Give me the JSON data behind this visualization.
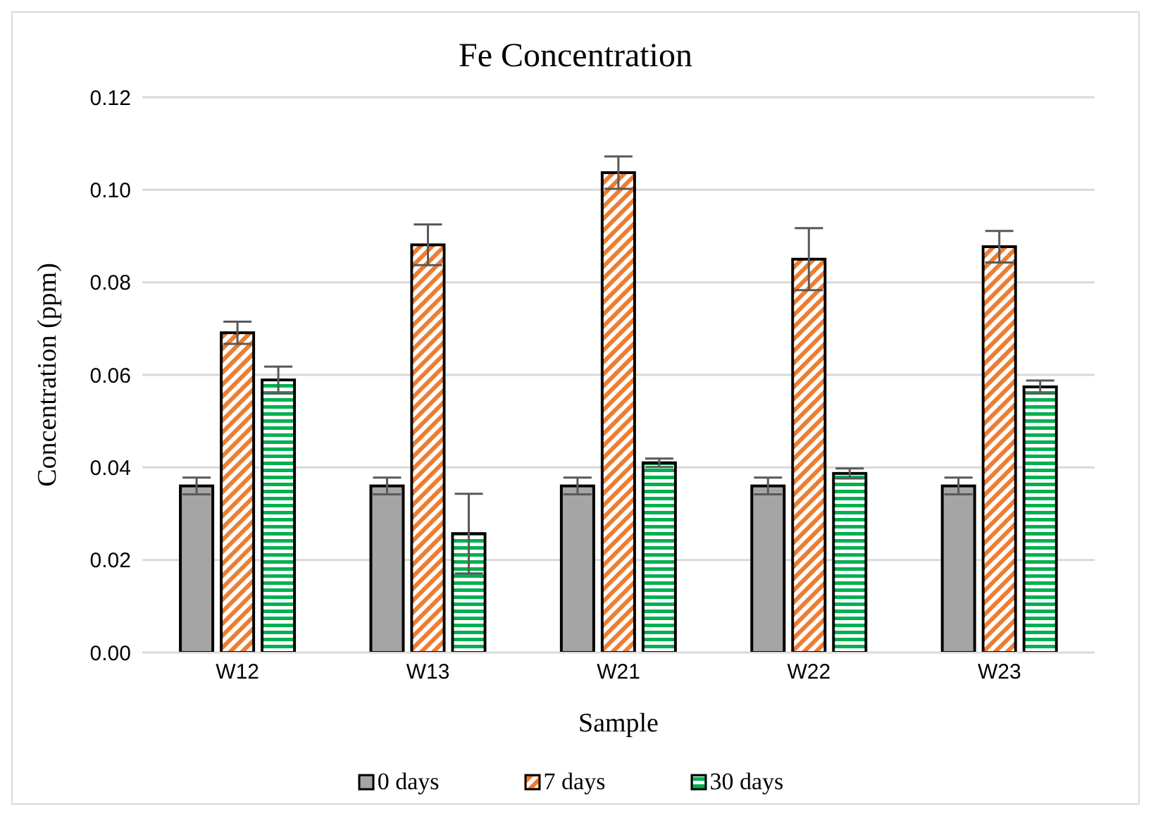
{
  "chart_data": {
    "type": "bar",
    "title": "Fe Concentration",
    "xlabel": "Sample",
    "ylabel": "Concentration (ppm)",
    "categories": [
      "W12",
      "W13",
      "W21",
      "W22",
      "W23"
    ],
    "series": [
      {
        "name": "0 days",
        "color": "#a5a5a5",
        "values": [
          0.036,
          0.036,
          0.036,
          0.036,
          0.036
        ],
        "errors": [
          0.0018,
          0.0018,
          0.0018,
          0.0018,
          0.0018
        ]
      },
      {
        "name": "7 days",
        "color": "#ed7d31",
        "values": [
          0.0691,
          0.0881,
          0.1037,
          0.085,
          0.0877
        ],
        "errors": [
          0.0024,
          0.0044,
          0.0035,
          0.0067,
          0.0034
        ]
      },
      {
        "name": "30 days",
        "color": "#00b050",
        "values": [
          0.0589,
          0.0257,
          0.041,
          0.0387,
          0.0574
        ],
        "errors": [
          0.0029,
          0.0086,
          0.0009,
          0.0011,
          0.0014
        ]
      }
    ],
    "ylim": [
      0,
      0.12
    ],
    "yticks": [
      {
        "value": 0,
        "label": "0.00"
      },
      {
        "value": 0.02,
        "label": "0.02"
      },
      {
        "value": 0.04,
        "label": "0.04"
      },
      {
        "value": 0.06,
        "label": "0.06"
      },
      {
        "value": 0.08,
        "label": "0.08"
      },
      {
        "value": 0.1,
        "label": "0.10"
      },
      {
        "value": 0.12,
        "label": "0.12"
      }
    ],
    "grid": "y",
    "legend": "bottom"
  }
}
